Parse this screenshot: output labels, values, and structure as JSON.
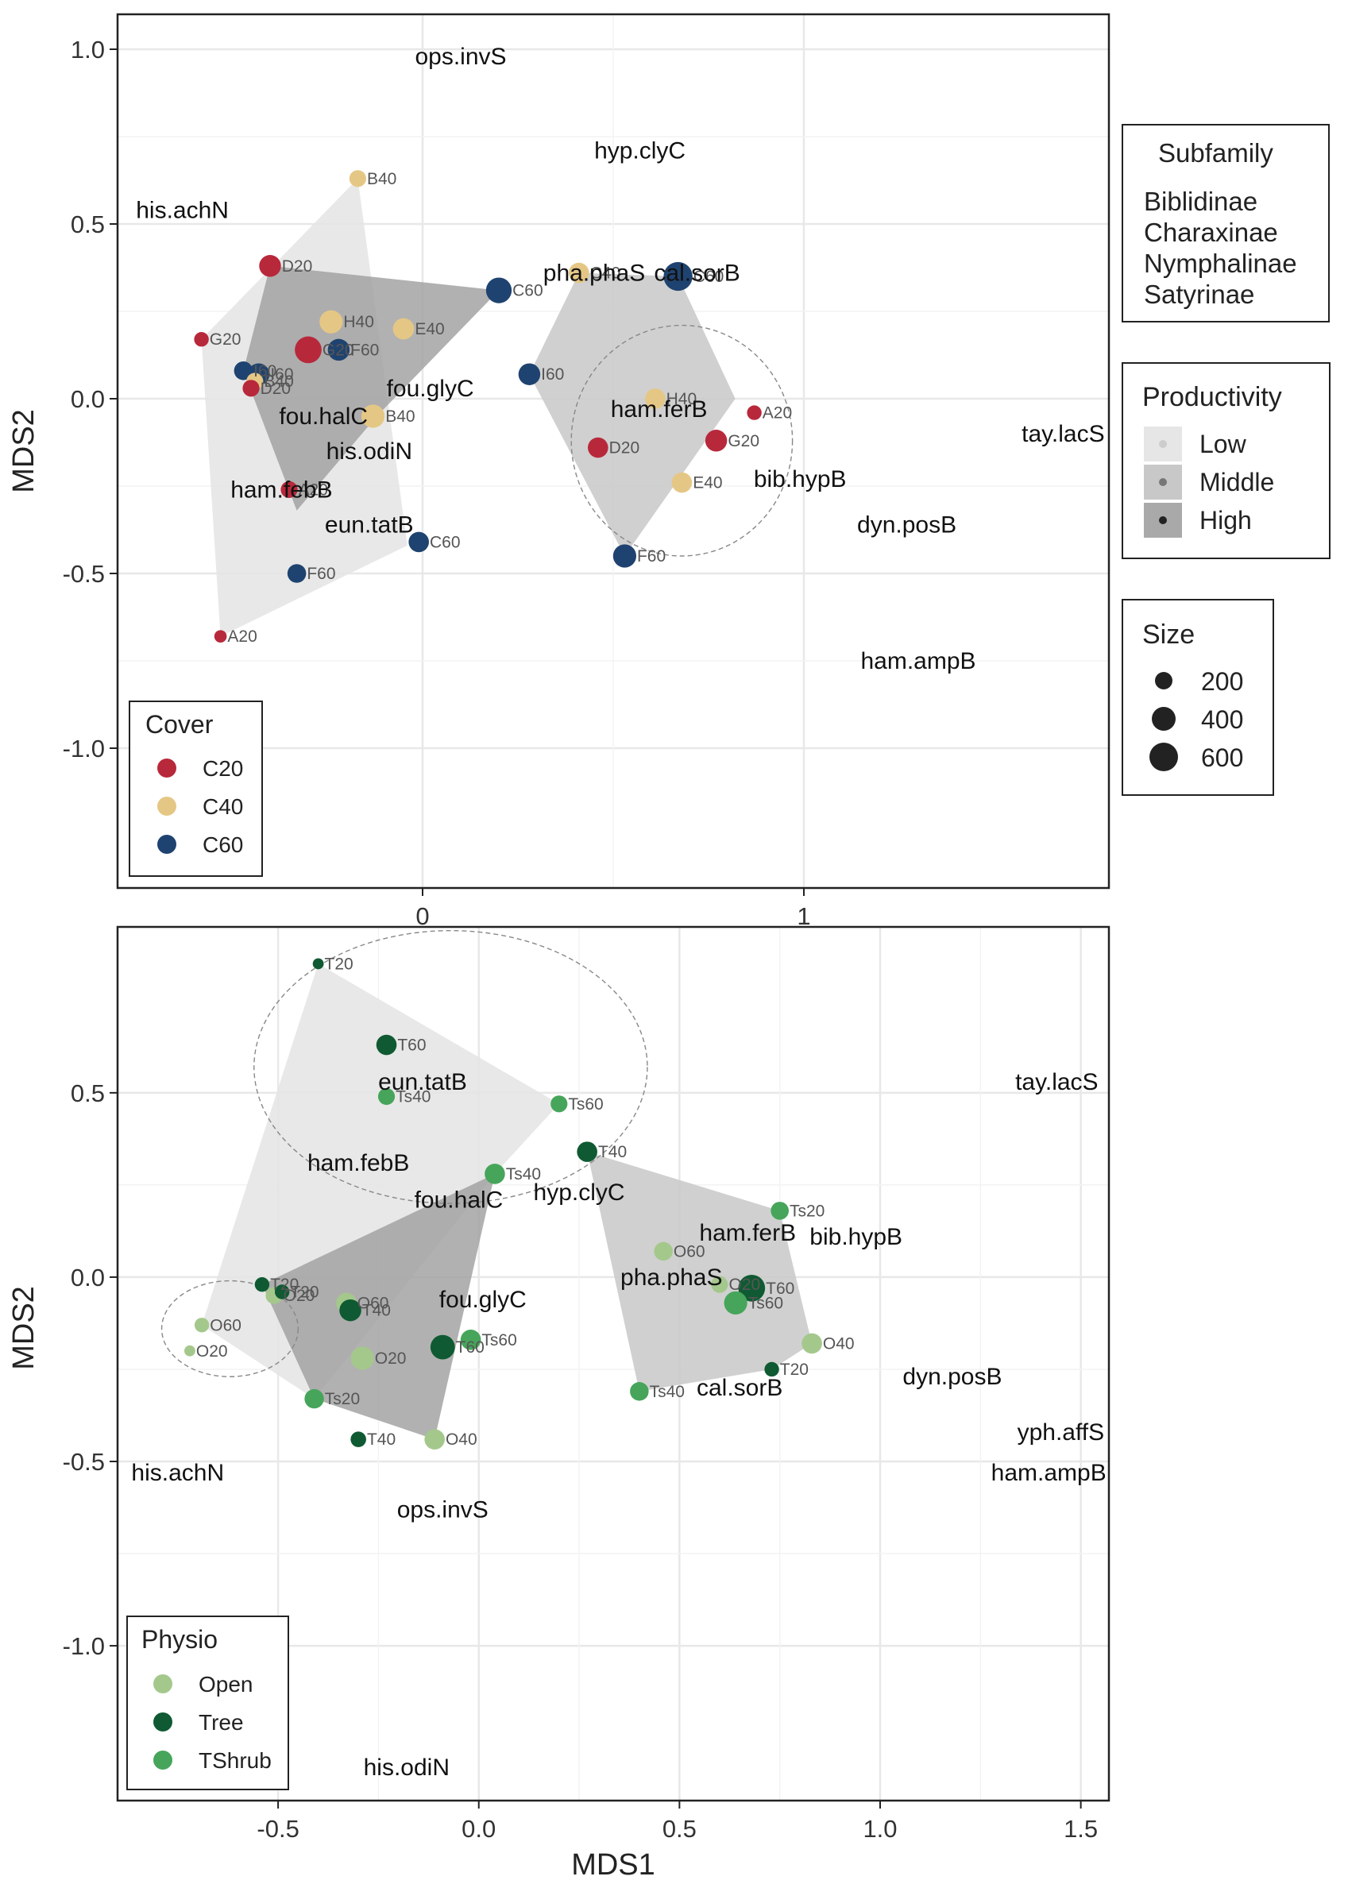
{
  "chart_data": [
    {
      "type": "scatter",
      "panel": "top",
      "ylabel": "MDS2",
      "xlim": [
        -0.8,
        1.8
      ],
      "ylim": [
        -1.4,
        1.1
      ],
      "xticks": [
        "0",
        "1"
      ],
      "xtick_values": [
        0,
        1
      ],
      "yticks": [
        "1.0",
        "0.5",
        "0.0",
        "-0.5",
        "-1.0"
      ],
      "ytick_values": [
        1.0,
        0.5,
        0.0,
        -0.5,
        -1.0
      ],
      "grid": true,
      "colors": {
        "C20": "#b8283b",
        "C40": "#e5c785",
        "C60": "#1f4370"
      },
      "points": [
        {
          "label": "B40",
          "group": "C40",
          "x": -0.17,
          "y": 0.63,
          "size": 150
        },
        {
          "label": "D20",
          "group": "C20",
          "x": -0.4,
          "y": 0.38,
          "size": 300
        },
        {
          "label": "G20",
          "group": "C20",
          "x": -0.58,
          "y": 0.17,
          "size": 100
        },
        {
          "label": "H40",
          "group": "C40",
          "x": -0.24,
          "y": 0.22,
          "size": 350
        },
        {
          "label": "E40",
          "group": "C40",
          "x": -0.05,
          "y": 0.2,
          "size": 280
        },
        {
          "label": "C60",
          "group": "C60",
          "x": 0.2,
          "y": 0.31,
          "size": 450
        },
        {
          "label": "G20",
          "group": "C20",
          "x": -0.3,
          "y": 0.14,
          "size": 500
        },
        {
          "label": "F60",
          "group": "C60",
          "x": -0.22,
          "y": 0.14,
          "size": 300
        },
        {
          "label": "I60",
          "group": "C60",
          "x": -0.47,
          "y": 0.08,
          "size": 200
        },
        {
          "label": "I60",
          "group": "C60",
          "x": -0.43,
          "y": 0.07,
          "size": 300
        },
        {
          "label": "B40",
          "group": "C40",
          "x": -0.44,
          "y": 0.05,
          "size": 150
        },
        {
          "label": "D20",
          "group": "C20",
          "x": -0.45,
          "y": 0.03,
          "size": 150
        },
        {
          "label": "B40",
          "group": "C40",
          "x": -0.13,
          "y": -0.05,
          "size": 350
        },
        {
          "label": "A20",
          "group": "C20",
          "x": -0.35,
          "y": -0.26,
          "size": 150
        },
        {
          "label": "C60",
          "group": "C60",
          "x": -0.01,
          "y": -0.41,
          "size": 250
        },
        {
          "label": "F60",
          "group": "C60",
          "x": -0.33,
          "y": -0.5,
          "size": 200
        },
        {
          "label": "A20",
          "group": "C20",
          "x": -0.53,
          "y": -0.68,
          "size": 60
        },
        {
          "label": "I60",
          "group": "C60",
          "x": 0.28,
          "y": 0.07,
          "size": 300
        },
        {
          "label": "H40",
          "group": "C40",
          "x": 0.61,
          "y": 0.0,
          "size": 250
        },
        {
          "label": "A20",
          "group": "C20",
          "x": 0.87,
          "y": -0.04,
          "size": 100
        },
        {
          "label": "D20",
          "group": "C20",
          "x": 0.46,
          "y": -0.14,
          "size": 250
        },
        {
          "label": "G20",
          "group": "C20",
          "x": 0.77,
          "y": -0.12,
          "size": 300
        },
        {
          "label": "E40",
          "group": "C40",
          "x": 0.68,
          "y": -0.24,
          "size": 250
        },
        {
          "label": "F60",
          "group": "C60",
          "x": 0.53,
          "y": -0.45,
          "size": 350
        },
        {
          "label": "C40",
          "group": "C40",
          "x": 0.41,
          "y": 0.36,
          "size": 250
        },
        {
          "label": "C60",
          "group": "C60",
          "x": 0.67,
          "y": 0.35,
          "size": 600
        }
      ],
      "species": [
        {
          "text": "ops.invS",
          "x": 0.1,
          "y": 0.98
        },
        {
          "text": "hyp.clyC",
          "x": 0.57,
          "y": 0.71
        },
        {
          "text": "his.achN",
          "x": -0.63,
          "y": 0.54
        },
        {
          "text": "pha.phaS",
          "x": 0.45,
          "y": 0.36
        },
        {
          "text": "cal.sorB",
          "x": 0.72,
          "y": 0.36
        },
        {
          "text": "fou.glyC",
          "x": 0.02,
          "y": 0.03
        },
        {
          "text": "fou.halC",
          "x": -0.26,
          "y": -0.05
        },
        {
          "text": "his.odiN",
          "x": -0.14,
          "y": -0.15
        },
        {
          "text": "ham.ferB",
          "x": 0.62,
          "y": -0.03
        },
        {
          "text": "ham.febB",
          "x": -0.37,
          "y": -0.26
        },
        {
          "text": "bib.hypB",
          "x": 0.99,
          "y": -0.23
        },
        {
          "text": "eun.tatB",
          "x": -0.14,
          "y": -0.36
        },
        {
          "text": "tay.lacS",
          "x": 1.68,
          "y": -0.1
        },
        {
          "text": "dyn.posB",
          "x": 1.27,
          "y": -0.36
        },
        {
          "text": "ham.ampB",
          "x": 1.3,
          "y": -0.75
        }
      ],
      "hulls": [
        {
          "level": "Low",
          "points": [
            [
              -0.17,
              0.63
            ],
            [
              -0.04,
              -0.42
            ],
            [
              -0.53,
              -0.68
            ],
            [
              -0.58,
              0.17
            ]
          ]
        },
        {
          "level": "High",
          "points": [
            [
              -0.4,
              0.38
            ],
            [
              0.2,
              0.31
            ],
            [
              -0.12,
              -0.05
            ],
            [
              -0.33,
              -0.32
            ],
            [
              -0.47,
              0.08
            ]
          ]
        },
        {
          "level": "Middle",
          "points": [
            [
              0.28,
              0.07
            ],
            [
              0.41,
              0.36
            ],
            [
              0.67,
              0.35
            ],
            [
              0.82,
              0.0
            ],
            [
              0.53,
              -0.45
            ]
          ]
        }
      ],
      "ellipses": [
        {
          "cx": 0.68,
          "cy": -0.12,
          "rx": 0.29,
          "ry": 0.33
        }
      ],
      "legends": {
        "cover": {
          "title": "Cover",
          "items": [
            "C20",
            "C40",
            "C60"
          ]
        },
        "subfamily": {
          "title": "Subfamily",
          "items": [
            "Biblidinae",
            "Charaxinae",
            "Nymphalinae",
            "Satyrinae"
          ]
        },
        "productivity": {
          "title": "Productivity",
          "items": [
            "Low",
            "Middle",
            "High"
          ]
        },
        "size": {
          "title": "Size",
          "items": [
            "200",
            "400",
            "600"
          ]
        }
      }
    },
    {
      "type": "scatter",
      "panel": "bottom",
      "xlabel": "MDS1",
      "ylabel": "MDS2",
      "xlim": [
        -0.9,
        1.57
      ],
      "ylim": [
        -1.42,
        0.95
      ],
      "xticks": [
        "-0.5",
        "0.0",
        "0.5",
        "1.0",
        "1.5"
      ],
      "xtick_values": [
        -0.5,
        0.0,
        0.5,
        1.0,
        1.5
      ],
      "yticks": [
        "0.5",
        "0.0",
        "-0.5",
        "-1.0"
      ],
      "ytick_values": [
        0.5,
        0.0,
        -0.5,
        -1.0
      ],
      "grid": true,
      "colors": {
        "Open": "#a4c88c",
        "Tree": "#0f5a32",
        "TShrub": "#46a55a"
      },
      "points": [
        {
          "label": "T20",
          "group": "Tree",
          "x": -0.4,
          "y": 0.85,
          "size": 40
        },
        {
          "label": "T60",
          "group": "Tree",
          "x": -0.23,
          "y": 0.63,
          "size": 250
        },
        {
          "label": "Ts40",
          "group": "TShrub",
          "x": -0.23,
          "y": 0.49,
          "size": 150
        },
        {
          "label": "Ts60",
          "group": "TShrub",
          "x": 0.2,
          "y": 0.47,
          "size": 150
        },
        {
          "label": "T40",
          "group": "Tree",
          "x": 0.27,
          "y": 0.34,
          "size": 250
        },
        {
          "label": "Ts40",
          "group": "TShrub",
          "x": 0.04,
          "y": 0.28,
          "size": 250
        },
        {
          "label": "Ts20",
          "group": "TShrub",
          "x": 0.75,
          "y": 0.18,
          "size": 180
        },
        {
          "label": "O60",
          "group": "Open",
          "x": 0.46,
          "y": 0.07,
          "size": 200
        },
        {
          "label": "O20",
          "group": "Open",
          "x": 0.6,
          "y": -0.02,
          "size": 150
        },
        {
          "label": "T60",
          "group": "Tree",
          "x": 0.68,
          "y": -0.03,
          "size": 500
        },
        {
          "label": "Ts60",
          "group": "TShrub",
          "x": 0.64,
          "y": -0.07,
          "size": 350
        },
        {
          "label": "O40",
          "group": "Open",
          "x": 0.83,
          "y": -0.18,
          "size": 250
        },
        {
          "label": "T20",
          "group": "Tree",
          "x": 0.73,
          "y": -0.25,
          "size": 100
        },
        {
          "label": "Ts40",
          "group": "TShrub",
          "x": 0.4,
          "y": -0.31,
          "size": 200
        },
        {
          "label": "T20",
          "group": "Tree",
          "x": -0.54,
          "y": -0.02,
          "size": 100
        },
        {
          "label": "O20",
          "group": "Open",
          "x": -0.51,
          "y": -0.05,
          "size": 150
        },
        {
          "label": "T20",
          "group": "Tree",
          "x": -0.49,
          "y": -0.04,
          "size": 100
        },
        {
          "label": "O60",
          "group": "Open",
          "x": -0.33,
          "y": -0.07,
          "size": 250
        },
        {
          "label": "T40",
          "group": "Tree",
          "x": -0.32,
          "y": -0.09,
          "size": 300
        },
        {
          "label": "O20",
          "group": "Open",
          "x": -0.29,
          "y": -0.22,
          "size": 350
        },
        {
          "label": "T60",
          "group": "Tree",
          "x": -0.09,
          "y": -0.19,
          "size": 400
        },
        {
          "label": "Ts60",
          "group": "TShrub",
          "x": -0.02,
          "y": -0.17,
          "size": 250
        },
        {
          "label": "Ts20",
          "group": "TShrub",
          "x": -0.41,
          "y": -0.33,
          "size": 220
        },
        {
          "label": "T40",
          "group": "Tree",
          "x": -0.3,
          "y": -0.44,
          "size": 120
        },
        {
          "label": "O40",
          "group": "Open",
          "x": -0.11,
          "y": -0.44,
          "size": 250
        },
        {
          "label": "O60",
          "group": "Open",
          "x": -0.69,
          "y": -0.13,
          "size": 100
        },
        {
          "label": "O20",
          "group": "Open",
          "x": -0.72,
          "y": -0.2,
          "size": 40
        }
      ],
      "species": [
        {
          "text": "eun.tatB",
          "x": -0.14,
          "y": 0.53
        },
        {
          "text": "tay.lacS",
          "x": 1.44,
          "y": 0.53
        },
        {
          "text": "ham.febB",
          "x": -0.3,
          "y": 0.31
        },
        {
          "text": "fou.halC",
          "x": -0.05,
          "y": 0.21
        },
        {
          "text": "hyp.clyC",
          "x": 0.25,
          "y": 0.23
        },
        {
          "text": "ham.ferB",
          "x": 0.67,
          "y": 0.12
        },
        {
          "text": "bib.hypB",
          "x": 0.94,
          "y": 0.11
        },
        {
          "text": "pha.phaS",
          "x": 0.48,
          "y": 0.0
        },
        {
          "text": "fou.glyC",
          "x": 0.01,
          "y": -0.06
        },
        {
          "text": "dyn.posB",
          "x": 1.18,
          "y": -0.27
        },
        {
          "text": "cal.sorB",
          "x": 0.65,
          "y": -0.3
        },
        {
          "text": "yph.affS",
          "x": 1.45,
          "y": -0.42
        },
        {
          "text": "ham.ampB",
          "x": 1.42,
          "y": -0.53
        },
        {
          "text": "his.achN",
          "x": -0.75,
          "y": -0.53
        },
        {
          "text": "ops.invS",
          "x": -0.09,
          "y": -0.63
        },
        {
          "text": "his.odiN",
          "x": -0.18,
          "y": -1.33
        }
      ],
      "hulls": [
        {
          "level": "Low",
          "points": [
            [
              -0.4,
              0.85
            ],
            [
              0.2,
              0.47
            ],
            [
              0.04,
              0.28
            ],
            [
              -0.41,
              -0.33
            ],
            [
              -0.69,
              -0.13
            ]
          ]
        },
        {
          "level": "Middle",
          "points": [
            [
              0.27,
              0.34
            ],
            [
              0.75,
              0.18
            ],
            [
              0.83,
              -0.18
            ],
            [
              0.73,
              -0.25
            ],
            [
              0.4,
              -0.31
            ]
          ]
        },
        {
          "level": "High",
          "points": [
            [
              -0.54,
              -0.02
            ],
            [
              0.04,
              0.28
            ],
            [
              -0.11,
              -0.44
            ],
            [
              -0.41,
              -0.33
            ]
          ]
        }
      ],
      "ellipses": [
        {
          "cx": -0.07,
          "cy": 0.57,
          "rx": 0.49,
          "ry": 0.37
        },
        {
          "cx": -0.62,
          "cy": -0.14,
          "rx": 0.17,
          "ry": 0.13
        }
      ],
      "legends": {
        "physio": {
          "title": "Physio",
          "items": [
            "Open",
            "Tree",
            "TShrub"
          ]
        }
      }
    }
  ]
}
